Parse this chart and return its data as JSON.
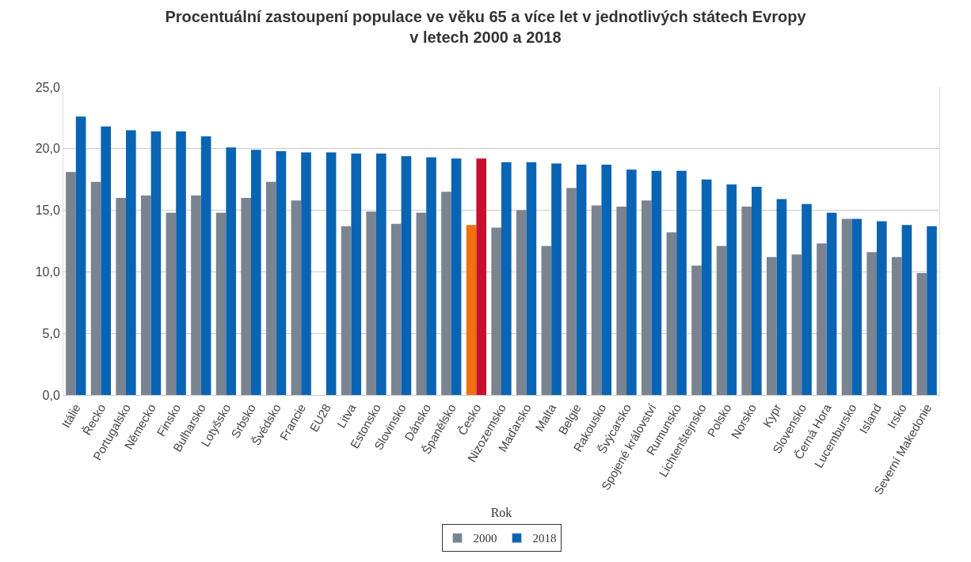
{
  "chart_data": {
    "type": "bar",
    "title": "Procentuální zastoupení populace ve věku 65 a více let v jednotlivých státech Evropy\nv letech 2000 a 2018",
    "xlabel": "Rok",
    "categories": [
      "Itálie",
      "Řecko",
      "Portugalsko",
      "Německo",
      "Finsko",
      "Bulharsko",
      "Lotyšsko",
      "Srbsko",
      "Švédsko",
      "Francie",
      "EU28",
      "Litva",
      "Estonsko",
      "Slovinsko",
      "Dánsko",
      "Španělsko",
      "Česko",
      "Nizozemsko",
      "Maďarsko",
      "Malta",
      "Belgie",
      "Rakousko",
      "Švýcarsko",
      "Spojené království",
      "Rumunsko",
      "Lichtenštejnsko",
      "Polsko",
      "Norsko",
      "Kypr",
      "Slovensko",
      "Černá Hora",
      "Lucembursko",
      "Island",
      "Irsko",
      "Severní Makedonie"
    ],
    "series": [
      {
        "name": "2000",
        "color": "#7a8490",
        "colors": [
          "#7a8490",
          "#7a8490",
          "#7a8490",
          "#7a8490",
          "#7a8490",
          "#7a8490",
          "#7a8490",
          "#7a8490",
          "#7a8490",
          "#7a8490",
          "#7a8490",
          "#7a8490",
          "#7a8490",
          "#7a8490",
          "#7a8490",
          "#7a8490",
          "#f07010",
          "#7a8490",
          "#7a8490",
          "#7a8490",
          "#7a8490",
          "#7a8490",
          "#7a8490",
          "#7a8490",
          "#7a8490",
          "#7a8490",
          "#7a8490",
          "#7a8490",
          "#7a8490",
          "#7a8490",
          "#7a8490",
          "#7a8490",
          "#7a8490",
          "#7a8490",
          "#7a8490"
        ],
        "values": [
          18.1,
          17.3,
          16.0,
          16.2,
          14.8,
          16.2,
          14.8,
          16.0,
          17.3,
          15.8,
          null,
          13.7,
          14.9,
          13.9,
          14.8,
          16.5,
          13.8,
          13.6,
          15.0,
          12.1,
          16.8,
          15.4,
          15.3,
          15.8,
          13.2,
          10.5,
          12.1,
          15.3,
          11.2,
          11.4,
          12.3,
          14.3,
          11.6,
          11.2,
          9.9
        ]
      },
      {
        "name": "2018",
        "color": "#0a64b4",
        "colors": [
          "#0a64b4",
          "#0a64b4",
          "#0a64b4",
          "#0a64b4",
          "#0a64b4",
          "#0a64b4",
          "#0a64b4",
          "#0a64b4",
          "#0a64b4",
          "#0a64b4",
          "#0a64b4",
          "#0a64b4",
          "#0a64b4",
          "#0a64b4",
          "#0a64b4",
          "#0a64b4",
          "#c8102e",
          "#0a64b4",
          "#0a64b4",
          "#0a64b4",
          "#0a64b4",
          "#0a64b4",
          "#0a64b4",
          "#0a64b4",
          "#0a64b4",
          "#0a64b4",
          "#0a64b4",
          "#0a64b4",
          "#0a64b4",
          "#0a64b4",
          "#0a64b4",
          "#0a64b4",
          "#0a64b4",
          "#0a64b4",
          "#0a64b4"
        ],
        "values": [
          22.6,
          21.8,
          21.5,
          21.4,
          21.4,
          21.0,
          20.1,
          19.9,
          19.8,
          19.7,
          19.7,
          19.6,
          19.6,
          19.4,
          19.3,
          19.2,
          19.2,
          18.9,
          18.9,
          18.8,
          18.7,
          18.7,
          18.3,
          18.2,
          18.2,
          17.5,
          17.1,
          16.9,
          15.9,
          15.5,
          14.8,
          14.3,
          14.1,
          13.8,
          13.7
        ]
      }
    ],
    "ylim": [
      0,
      25
    ],
    "yticks": [
      {
        "value": 0,
        "label": "0,0"
      },
      {
        "value": 5,
        "label": "5,0"
      },
      {
        "value": 10,
        "label": "10,0"
      },
      {
        "value": 15,
        "label": "15,0"
      },
      {
        "value": 20,
        "label": "20,0"
      },
      {
        "value": 25,
        "label": "25,0"
      }
    ],
    "grid": "y",
    "legend": "bottom"
  }
}
